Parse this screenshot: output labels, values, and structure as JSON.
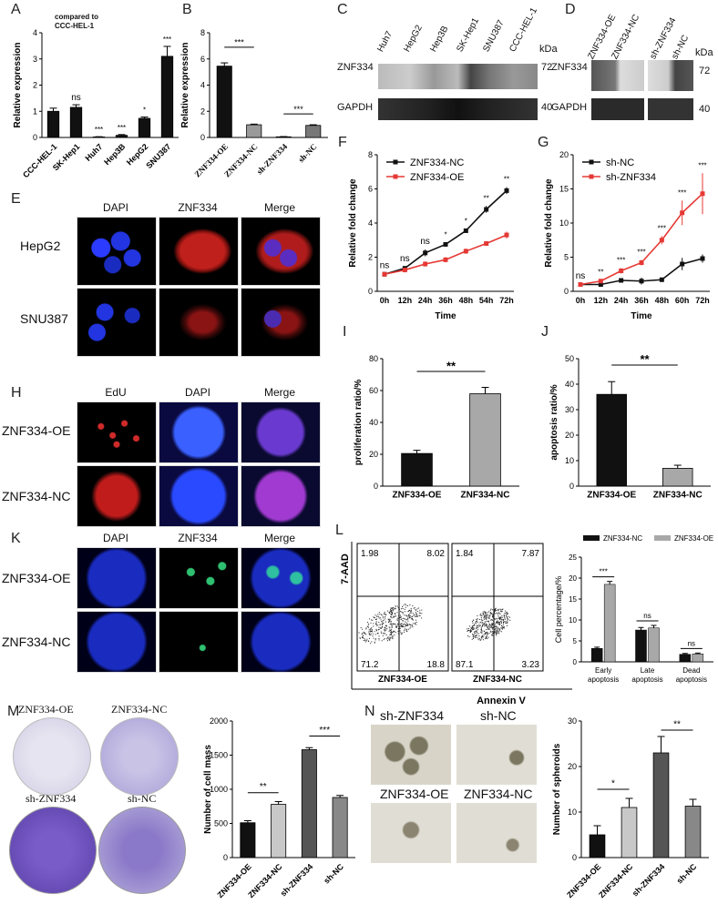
{
  "panels": {
    "A": "A",
    "B": "B",
    "C": "C",
    "D": "D",
    "E": "E",
    "F": "F",
    "G": "G",
    "H": "H",
    "I": "I",
    "J": "J",
    "K": "K",
    "L": "L",
    "M": "M",
    "N": "N"
  },
  "panelA": {
    "note": "compared to\nCCC-HEL-1",
    "ylabel": "Relative expression",
    "sig": [
      "",
      "ns",
      "***",
      "***",
      "*",
      "***"
    ]
  },
  "panelB": {
    "ylabel": "Relative expression",
    "sig": [
      "***",
      "***"
    ]
  },
  "panelC": {
    "lanes": [
      "Huh7",
      "HepG2",
      "Hep3B",
      "SK-Hep1",
      "SNU387",
      "CCC-HEL-1"
    ],
    "kda": "kDa",
    "rows": [
      {
        "name": "ZNF334",
        "kda": "72"
      },
      {
        "name": "GAPDH",
        "kda": "40"
      }
    ]
  },
  "panelD": {
    "lanes": [
      "ZNF334-OE",
      "ZNF334-NC",
      "sh-ZNF334",
      "sh-NC"
    ],
    "kda": "kDa",
    "rows": [
      {
        "name": "ZNF334",
        "kda": "72"
      },
      {
        "name": "GAPDH",
        "kda": "40"
      }
    ]
  },
  "panelE": {
    "cols": [
      "DAPI",
      "ZNF334",
      "Merge"
    ],
    "rows": [
      "HepG2",
      "SNU387"
    ]
  },
  "panelF": {
    "ylabel": "Relative fold change",
    "xlabel": "Time",
    "sig": [
      "ns",
      "ns",
      "ns",
      "*",
      "*",
      "**",
      "**"
    ]
  },
  "panelG": {
    "ylabel": "Relative fold change",
    "xlabel": "Time",
    "sig": [
      "ns",
      "**",
      "***",
      "***",
      "***",
      "***",
      "***"
    ]
  },
  "panelH": {
    "cols": [
      "EdU",
      "DAPI",
      "Merge"
    ],
    "rows": [
      "ZNF334-OE",
      "ZNF334-NC"
    ]
  },
  "panelI": {
    "ylabel": "proliferation ratio/%",
    "sig": "**"
  },
  "panelJ": {
    "ylabel": "apoptosis ratio/%",
    "sig": "**"
  },
  "panelK": {
    "cols": [
      "DAPI",
      "ZNF334",
      "Merge"
    ],
    "rows": [
      "ZNF334-OE",
      "ZNF334-NC"
    ]
  },
  "panelL": {
    "ylabel": "7-AAD",
    "xlabel": "Annexin V",
    "plots": [
      {
        "name": "ZNF334-OE",
        "ul": "1.98",
        "ur": "8.02",
        "ll": "71.2",
        "lr": "18.8"
      },
      {
        "name": "ZNF334-NC",
        "ul": "1.84",
        "ur": "7.87",
        "ll": "87.1",
        "lr": "3.23"
      }
    ],
    "bar_ylabel": "Cell percentage/%",
    "sig": [
      "***",
      "ns",
      "ns"
    ]
  },
  "panelM": {
    "dishes": [
      "ZNF334-OE",
      "ZNF334-NC",
      "sh-ZNF334",
      "sh-NC"
    ],
    "ylabel": "Number of cell mass",
    "sig": [
      "**",
      "***"
    ]
  },
  "panelN": {
    "images": [
      "sh-ZNF334",
      "sh-NC",
      "ZNF334-OE",
      "ZNF334-NC"
    ],
    "ylabel": "Number of spheroids",
    "sig": [
      "*",
      "**"
    ]
  },
  "chart_data": [
    {
      "id": "A",
      "type": "bar",
      "categories": [
        "CCC-HEL-1",
        "SK-Hep1",
        "Huh7",
        "Hep3B",
        "HepG2",
        "SNU387"
      ],
      "values": [
        1.0,
        1.15,
        0.02,
        0.08,
        0.73,
        3.1
      ],
      "errors": [
        0.12,
        0.1,
        0.01,
        0.03,
        0.05,
        0.38
      ],
      "ylim": [
        0,
        4
      ],
      "yticks": [
        0,
        1,
        2,
        3,
        4
      ],
      "ylabel": "Relative expression",
      "colors": [
        "#111111"
      ]
    },
    {
      "id": "B",
      "type": "bar",
      "categories": [
        "ZNF334-OE",
        "ZNF334-NC",
        "sh-ZNF334",
        "sh-NC"
      ],
      "values": [
        5.45,
        0.97,
        0.05,
        0.92
      ],
      "errors": [
        0.25,
        0.05,
        0.02,
        0.05
      ],
      "ylim": [
        0,
        8
      ],
      "yticks": [
        0,
        2,
        4,
        6,
        8
      ],
      "ylabel": "Relative expression",
      "colors": [
        "#111111",
        "#9a9a9a",
        "#111111",
        "#777777"
      ]
    },
    {
      "id": "F",
      "type": "line",
      "x": [
        "0h",
        "12h",
        "24h",
        "36h",
        "48h",
        "54h",
        "72h"
      ],
      "series": [
        {
          "name": "ZNF334-NC",
          "color": "#111111",
          "values": [
            1.0,
            1.35,
            2.25,
            2.75,
            3.55,
            4.8,
            5.9
          ],
          "errors": [
            0.05,
            0.1,
            0.2,
            0.1,
            0.1,
            0.2,
            0.2
          ]
        },
        {
          "name": "ZNF334-OE",
          "color": "#e53935",
          "values": [
            1.0,
            1.25,
            1.6,
            1.85,
            2.35,
            2.8,
            3.3
          ],
          "errors": [
            0.05,
            0.1,
            0.15,
            0.15,
            0.15,
            0.1,
            0.2
          ]
        }
      ],
      "ylim": [
        0,
        8
      ],
      "yticks": [
        0,
        2,
        4,
        6,
        8
      ],
      "ylabel": "Relative fold change",
      "xlabel": "Time"
    },
    {
      "id": "G",
      "type": "line",
      "x": [
        "0h",
        "12h",
        "24h",
        "36h",
        "48h",
        "60h",
        "72h"
      ],
      "series": [
        {
          "name": "sh-NC",
          "color": "#111111",
          "values": [
            1.0,
            1.0,
            1.6,
            1.5,
            1.7,
            4.0,
            4.8
          ],
          "errors": [
            0.05,
            0.1,
            0.1,
            0.5,
            0.2,
            0.9,
            0.6
          ]
        },
        {
          "name": "sh-ZNF334",
          "color": "#e53935",
          "values": [
            1.0,
            1.5,
            3.0,
            4.2,
            7.5,
            11.5,
            14.3
          ],
          "errors": [
            0.05,
            0.2,
            0.4,
            0.4,
            0.6,
            1.8,
            3.0
          ]
        }
      ],
      "ylim": [
        0,
        20
      ],
      "yticks": [
        0,
        5,
        10,
        15,
        20
      ],
      "ylabel": "Relative fold change",
      "xlabel": "Time"
    },
    {
      "id": "I",
      "type": "bar",
      "categories": [
        "ZNF334-OE",
        "ZNF334-NC"
      ],
      "values": [
        20.5,
        58.0
      ],
      "errors": [
        2.0,
        4.0
      ],
      "ylim": [
        0,
        80
      ],
      "yticks": [
        0,
        20,
        40,
        60,
        80
      ],
      "ylabel": "proliferation ratio/%",
      "colors": [
        "#111111",
        "#a8a8a8"
      ]
    },
    {
      "id": "J",
      "type": "bar",
      "categories": [
        "ZNF334-OE",
        "ZNF334-NC"
      ],
      "values": [
        36.0,
        7.0
      ],
      "errors": [
        5.0,
        1.2
      ],
      "ylim": [
        0,
        50
      ],
      "yticks": [
        0,
        10,
        20,
        30,
        40,
        50
      ],
      "ylabel": "apoptosis ratio/%",
      "colors": [
        "#111111",
        "#a8a8a8"
      ]
    },
    {
      "id": "L",
      "type": "bar",
      "categories": [
        "Early apoptosis",
        "Late apoptosis",
        "Dead apoptosis"
      ],
      "series": [
        {
          "name": "ZNF334-NC",
          "color": "#111111",
          "values": [
            3.2,
            7.6,
            1.8
          ],
          "errors": [
            0.3,
            0.6,
            0.2
          ]
        },
        {
          "name": "ZNF334-OE",
          "color": "#a8a8a8",
          "values": [
            18.5,
            8.1,
            1.9
          ],
          "errors": [
            0.7,
            0.6,
            0.2
          ]
        }
      ],
      "ylim": [
        0,
        25
      ],
      "yticks": [
        0,
        5,
        10,
        15,
        20,
        25
      ],
      "ylabel": "Cell percentage/%"
    },
    {
      "id": "M",
      "type": "bar",
      "categories": [
        "ZNF334-OE",
        "ZNF334-NC",
        "sh-ZNF334",
        "sh-NC"
      ],
      "values": [
        510,
        780,
        1580,
        880
      ],
      "errors": [
        30,
        40,
        30,
        30
      ],
      "ylim": [
        0,
        2000
      ],
      "yticks": [
        0,
        500,
        1000,
        1500,
        2000
      ],
      "ylabel": "Number of cell mass",
      "colors": [
        "#111111",
        "#c8c8c8",
        "#555555",
        "#888888"
      ]
    },
    {
      "id": "N",
      "type": "bar",
      "categories": [
        "ZNF334-OE",
        "ZNF334-NC",
        "sh-ZNF334",
        "sh-NC"
      ],
      "values": [
        5,
        11,
        23,
        11.3
      ],
      "errors": [
        2,
        2,
        3.6,
        1.5
      ],
      "ylim": [
        0,
        30
      ],
      "yticks": [
        0,
        10,
        20,
        30
      ],
      "ylabel": "Number of spheroids",
      "colors": [
        "#111111",
        "#c8c8c8",
        "#555555",
        "#888888"
      ]
    }
  ]
}
